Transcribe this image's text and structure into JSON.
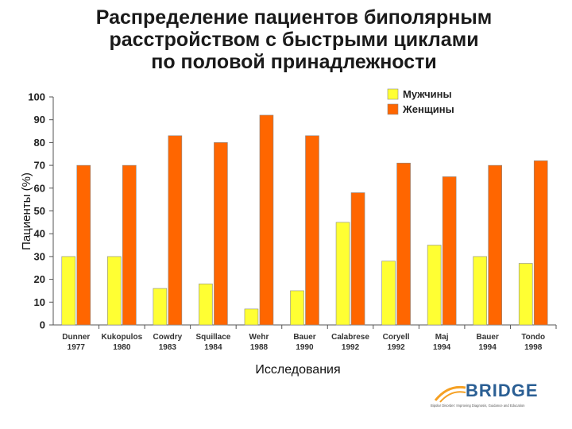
{
  "title_lines": [
    "Распределение пациентов биполярным",
    "расстройством с быстрыми циклами",
    "по половой принадлежности"
  ],
  "chart_data": {
    "type": "bar",
    "ylabel": "Пациенты (%)",
    "xlabel": "Исследования",
    "ylim": [
      0,
      100
    ],
    "yticks": [
      0,
      10,
      20,
      30,
      40,
      50,
      60,
      70,
      80,
      90,
      100
    ],
    "categories": [
      [
        "Dunner",
        "1977"
      ],
      [
        "Kukopulos",
        "1980"
      ],
      [
        "Cowdry",
        "1983"
      ],
      [
        "Squillace",
        "1984"
      ],
      [
        "Wehr",
        "1988"
      ],
      [
        "Bauer",
        "1990"
      ],
      [
        "Calabrese",
        "1992"
      ],
      [
        "Coryell",
        "1992"
      ],
      [
        "Maj",
        "1994"
      ],
      [
        "Bauer",
        "1994"
      ],
      [
        "Tondo",
        "1998"
      ]
    ],
    "series": [
      {
        "name": "Мужчины",
        "color": "#ffff33",
        "values": [
          30,
          30,
          16,
          18,
          7,
          15,
          45,
          28,
          35,
          30,
          27
        ]
      },
      {
        "name": "Женщины",
        "color": "#ff6600",
        "values": [
          70,
          70,
          83,
          80,
          92,
          83,
          58,
          71,
          65,
          70,
          72
        ]
      }
    ],
    "legend_position": "top-right"
  },
  "brand": {
    "name": "BRIDGE",
    "tagline": "Bipolar Disorder: Improving Diagnosis, Guidance and Education",
    "colors": {
      "primary": "#2b5f94",
      "accent": "#f5a023"
    }
  }
}
